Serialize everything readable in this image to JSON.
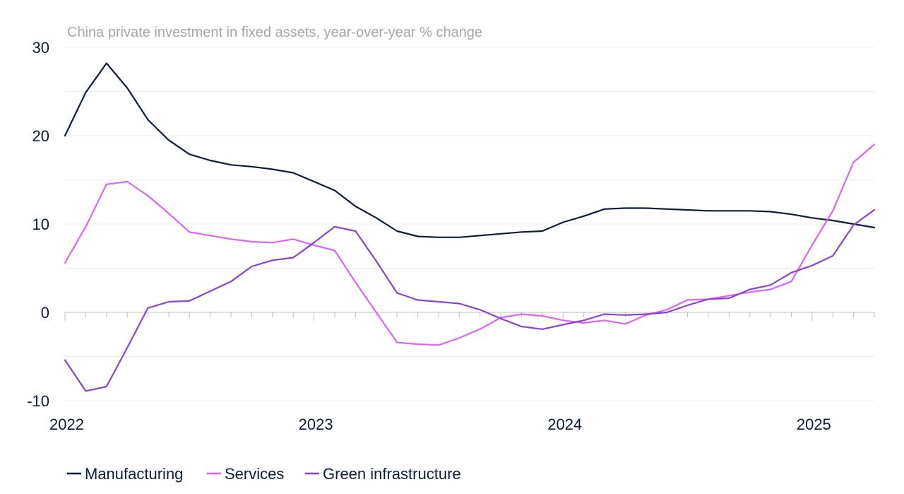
{
  "chart_data": {
    "type": "line",
    "title": "China private investment in fixed assets, year-over-year % change",
    "xlabel": "",
    "ylabel": "",
    "ylim": [
      -10,
      30
    ],
    "yticks": [
      "30",
      "20",
      "10",
      "0",
      "-10"
    ],
    "ytick_values": [
      30,
      20,
      10,
      0,
      -10
    ],
    "x_labels": [
      {
        "label": "2022",
        "index": 0
      },
      {
        "label": "2023",
        "index": 12
      },
      {
        "label": "2024",
        "index": 24
      },
      {
        "label": "2025",
        "index": 36
      }
    ],
    "x": [
      "2022-01",
      "2022-02",
      "2022-03",
      "2022-04",
      "2022-05",
      "2022-06",
      "2022-07",
      "2022-08",
      "2022-09",
      "2022-10",
      "2022-11",
      "2022-12",
      "2023-01",
      "2023-02",
      "2023-03",
      "2023-04",
      "2023-05",
      "2023-06",
      "2023-07",
      "2023-08",
      "2023-09",
      "2023-10",
      "2023-11",
      "2023-12",
      "2024-01",
      "2024-02",
      "2024-03",
      "2024-04",
      "2024-05",
      "2024-06",
      "2024-07",
      "2024-08",
      "2024-09",
      "2024-10",
      "2024-11",
      "2024-12",
      "2025-01",
      "2025-02",
      "2025-03",
      "2025-04"
    ],
    "legend_position": "bottom-left",
    "series": [
      {
        "name": "Manufacturing",
        "color": "#0b1e3d",
        "values": [
          20.0,
          24.9,
          28.2,
          25.4,
          21.8,
          19.5,
          17.9,
          17.2,
          16.7,
          16.5,
          16.2,
          15.8,
          14.8,
          13.8,
          12.0,
          10.7,
          9.2,
          8.6,
          8.5,
          8.5,
          8.7,
          8.9,
          9.1,
          9.2,
          10.2,
          10.9,
          11.7,
          11.8,
          11.8,
          11.7,
          11.6,
          11.5,
          11.5,
          11.5,
          11.4,
          11.1,
          10.7,
          10.4,
          10.0,
          9.6
        ]
      },
      {
        "name": "Services",
        "color": "#d966f5",
        "values": [
          5.6,
          9.7,
          14.5,
          14.8,
          13.2,
          11.2,
          9.1,
          8.7,
          8.3,
          8.0,
          7.9,
          8.3,
          7.6,
          7.0,
          3.4,
          0.0,
          -3.4,
          -3.6,
          -3.7,
          -2.9,
          -1.9,
          -0.6,
          -0.2,
          -0.4,
          -0.9,
          -1.2,
          -0.9,
          -1.3,
          -0.3,
          0.3,
          1.4,
          1.5,
          1.9,
          2.3,
          2.6,
          3.5,
          7.6,
          11.5,
          17.0,
          19.0
        ]
      },
      {
        "name": "Green infrastructure",
        "color": "#8a44cc",
        "values": [
          -5.4,
          -8.9,
          -8.4,
          -4.0,
          0.5,
          1.2,
          1.3,
          2.4,
          3.5,
          5.2,
          5.9,
          6.2,
          7.9,
          9.7,
          9.2,
          5.8,
          2.2,
          1.4,
          1.2,
          1.0,
          0.3,
          -0.7,
          -1.6,
          -1.9,
          -1.4,
          -0.9,
          -0.2,
          -0.3,
          -0.2,
          0.0,
          0.8,
          1.5,
          1.6,
          2.6,
          3.1,
          4.5,
          5.3,
          6.4,
          9.9,
          11.6
        ]
      }
    ]
  }
}
